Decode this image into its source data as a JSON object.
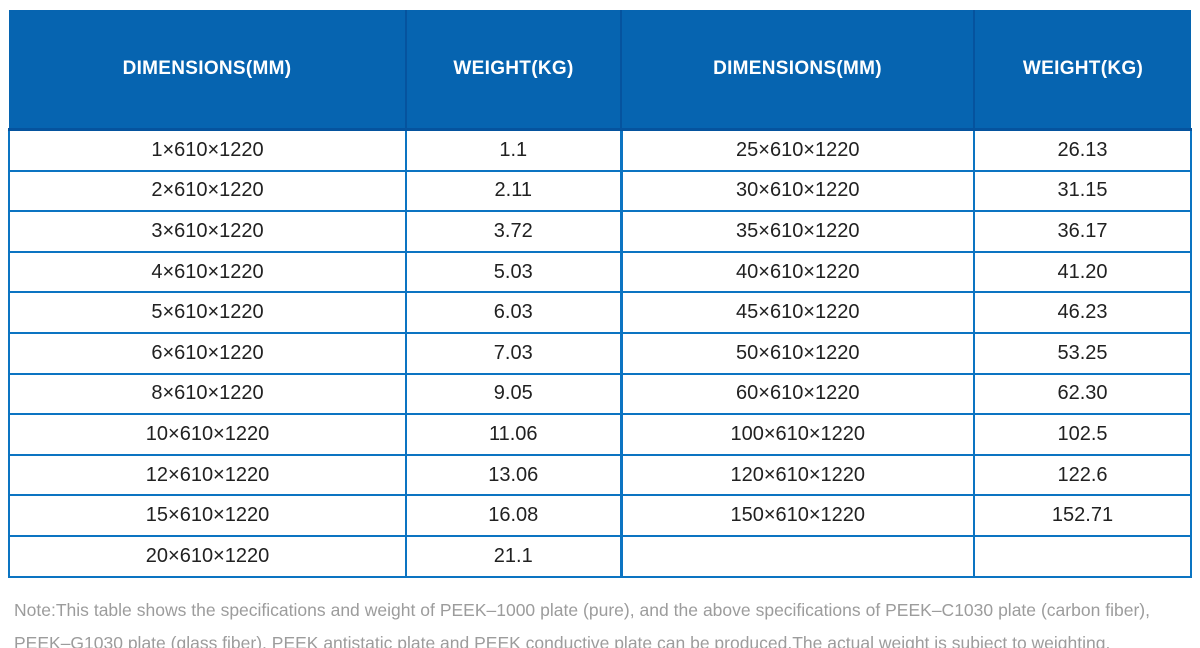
{
  "table": {
    "headers": [
      {
        "label": "DIMENSIONS(MM)"
      },
      {
        "label": "WEIGHT(KG)"
      },
      {
        "label": "DIMENSIONS(MM)"
      },
      {
        "label": "WEIGHT(KG)"
      }
    ],
    "rows": [
      [
        "1×610×1220",
        "1.1",
        "25×610×1220",
        "26.13"
      ],
      [
        "2×610×1220",
        "2.11",
        "30×610×1220",
        "31.15"
      ],
      [
        "3×610×1220",
        "3.72",
        "35×610×1220",
        "36.17"
      ],
      [
        "4×610×1220",
        "5.03",
        "40×610×1220",
        "41.20"
      ],
      [
        "5×610×1220",
        "6.03",
        "45×610×1220",
        "46.23"
      ],
      [
        "6×610×1220",
        "7.03",
        "50×610×1220",
        "53.25"
      ],
      [
        "8×610×1220",
        "9.05",
        "60×610×1220",
        "62.30"
      ],
      [
        "10×610×1220",
        "11.06",
        "100×610×1220",
        "102.5"
      ],
      [
        "12×610×1220",
        "13.06",
        "120×610×1220",
        "122.6"
      ],
      [
        "15×610×1220",
        "16.08",
        "150×610×1220",
        "152.71"
      ],
      [
        "20×610×1220",
        "21.1",
        "",
        ""
      ]
    ]
  },
  "note": {
    "line1": "Note:This table shows the specifications and weight of PEEK–1000 plate (pure), and the above specifications of PEEK–C1030 plate (carbon fiber),",
    "line2": "PEEK–G1030 plate (glass fiber), PEEK antistatic plate and PEEK conductive plate can be produced.The actual weight is subject to weighting."
  },
  "colors": {
    "header_bg": "#0664b0",
    "header_divider": "#05539e",
    "cell_border": "#0c74c2",
    "cell_text": "#212121",
    "note_text": "#9c9c9c"
  }
}
